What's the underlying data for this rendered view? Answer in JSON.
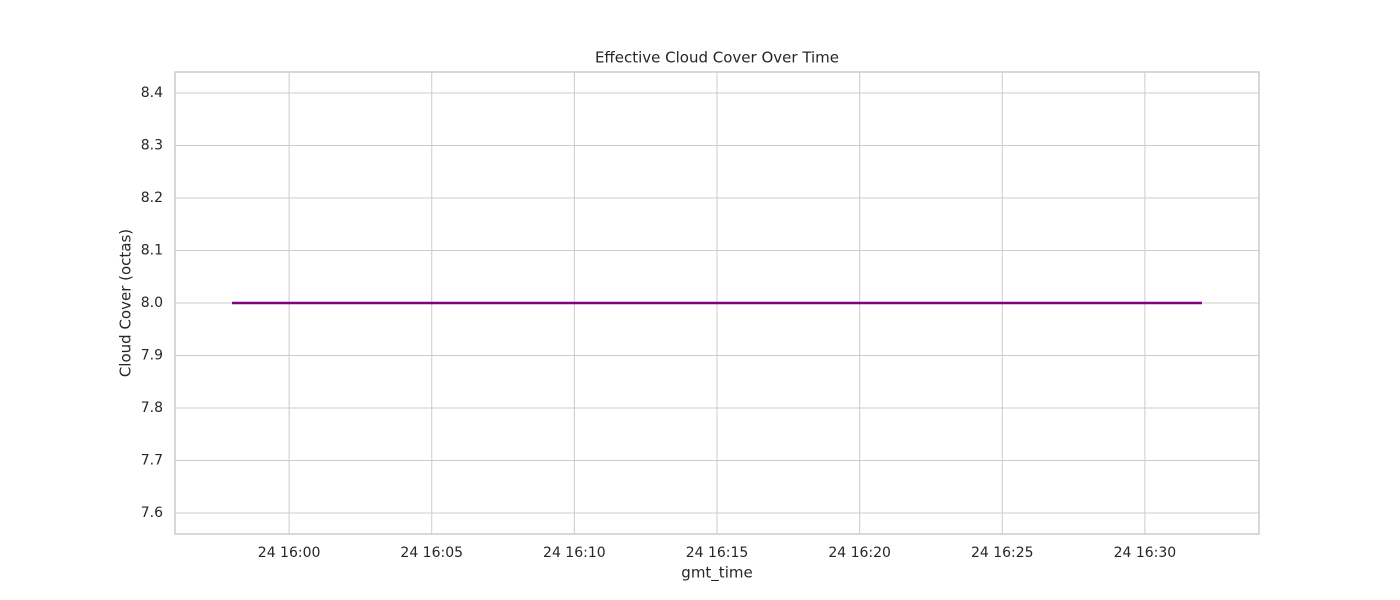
{
  "chart_data": {
    "type": "line",
    "title": "Effective Cloud Cover Over Time",
    "x_label": "gmt_time",
    "y_label": "Cloud Cover (octas)",
    "x": [
      "24 15:58",
      "24 16:32"
    ],
    "series": [
      {
        "name": "Cloud Cover",
        "color": "#800080",
        "values": [
          8,
          8
        ]
      }
    ],
    "xlim": [
      "24 15:56",
      "24 16:34"
    ],
    "xticks": [
      "24 16:00",
      "24 16:05",
      "24 16:10",
      "24 16:15",
      "24 16:20",
      "24 16:25",
      "24 16:30"
    ],
    "ylim": [
      7.56,
      8.44
    ],
    "yticks": [
      7.6,
      7.7,
      7.8,
      7.9,
      {
        "value": 8,
        "label": "8.0"
      },
      8.1,
      8.2,
      8.3,
      8.4
    ],
    "grid": true
  }
}
